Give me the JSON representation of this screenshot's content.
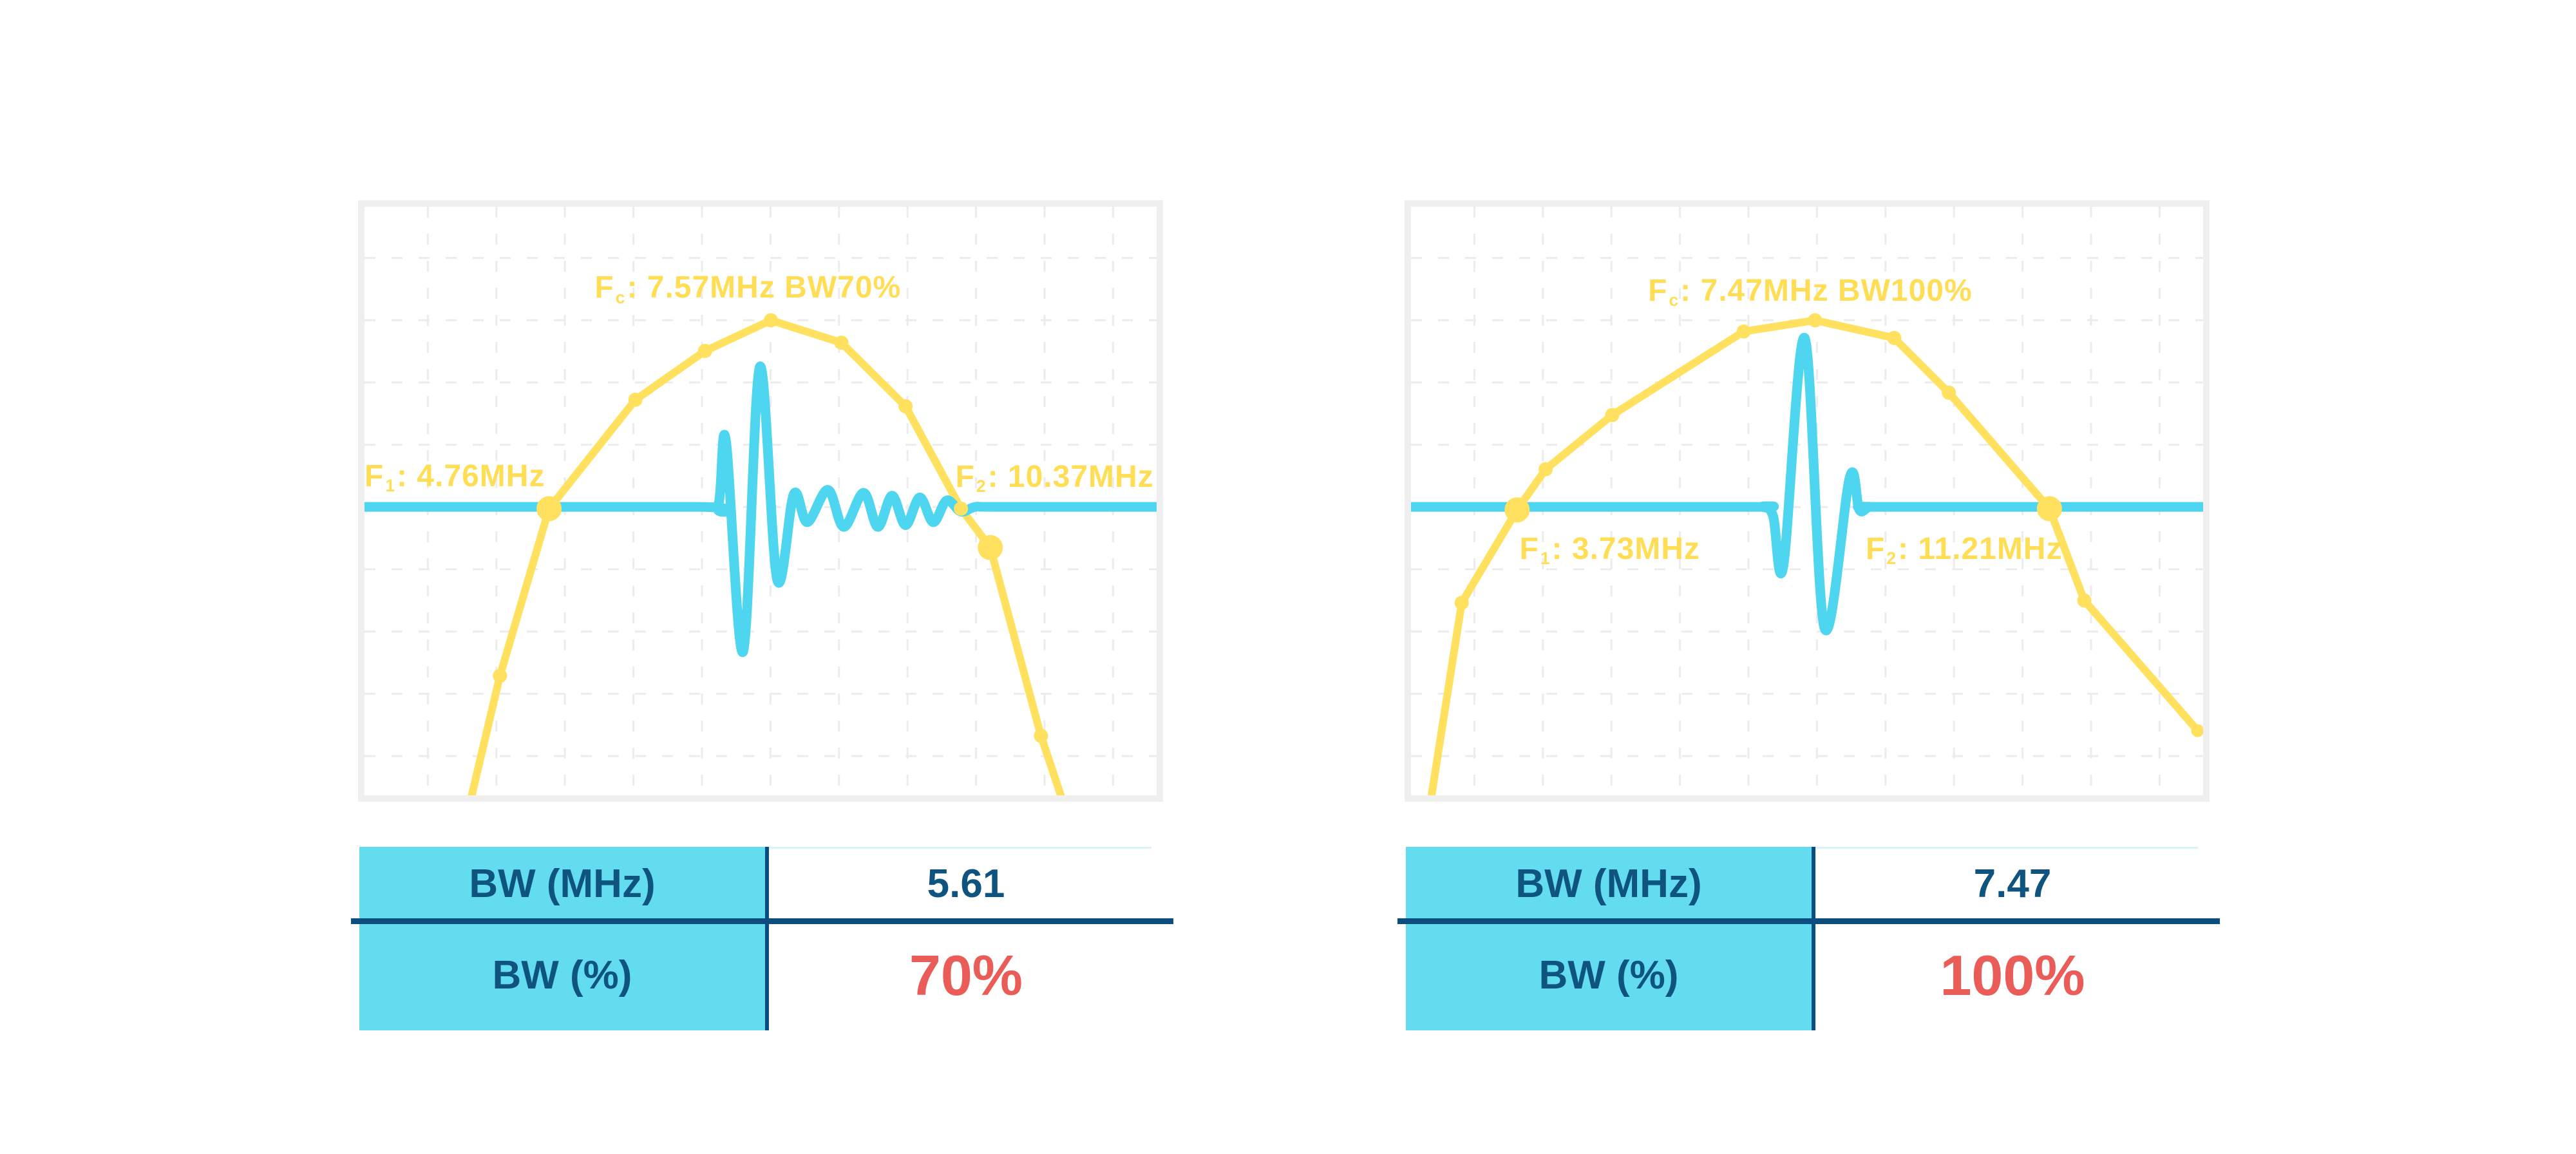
{
  "colors": {
    "yellow": "#FFE15F",
    "label_yellow": "#FFDE56",
    "cyan": "#4ED5EF",
    "table_fill": "#63DCEF",
    "navy": "#0F547E",
    "divider_navy": "#0B4D7E",
    "red": "#EA5C57",
    "frame": "#EFEFEF",
    "grid": "#ECECEC",
    "light_top": "#D9F1F8"
  },
  "panels": [
    {
      "table": {
        "rows": [
          {
            "label": "BW (MHz)",
            "value": "5.61",
            "style": "navy"
          },
          {
            "label": "BW (%)",
            "value": "70%",
            "style": "red"
          }
        ]
      }
    },
    {
      "table": {
        "rows": [
          {
            "label": "BW (MHz)",
            "value": "7.47",
            "style": "navy"
          },
          {
            "label": "BW (%)",
            "value": "100%",
            "style": "red"
          }
        ]
      }
    }
  ],
  "chart_data": [
    {
      "type": "line",
      "description": "Pulse spectrum with 70% bandwidth",
      "center_frequency_mhz": 7.57,
      "f1_mhz": 4.76,
      "f2_mhz": 10.37,
      "bandwidth_mhz": 5.61,
      "bandwidth_pct": 70,
      "grid": {
        "x_pct_start": 8.0,
        "x_pct_step": 8.65,
        "x_count": 11,
        "y_pct_start": 8.7,
        "y_pct_step": 10.58,
        "y_count": 9,
        "dash": "17 25",
        "width": 3
      },
      "annotations": {
        "fc": {
          "pre": "F",
          "sub": "c",
          "post": ": 7.57MHz BW70%",
          "x_pct": 48.4,
          "y_pct": 13.8,
          "anchor": "center"
        },
        "f1": {
          "pre": "F",
          "sub": "1",
          "post": ": 4.76MHz",
          "x_pct": 22.8,
          "y_pct": 45.8,
          "anchor": "right"
        },
        "f2": {
          "pre": "F",
          "sub": "2",
          "post": ": 10.37MHz",
          "x_pct": 74.6,
          "y_pct": 45.9,
          "anchor": "left"
        }
      },
      "series": [
        {
          "name": "spectrum",
          "style": "linear",
          "color": "#FFE15F",
          "stroke_width": 12,
          "points": [
            [
              13.4,
              100.8
            ],
            [
              17.1,
              79.7
            ],
            [
              23.3,
              51.3
            ],
            [
              34.2,
              32.8
            ],
            [
              43.0,
              24.5
            ],
            [
              51.3,
              19.3
            ],
            [
              60.2,
              23.1
            ],
            [
              68.3,
              33.9
            ],
            [
              75.3,
              51.3
            ],
            [
              79.0,
              57.9
            ],
            [
              85.4,
              89.9
            ],
            [
              88.1,
              100.8
            ]
          ],
          "markers": [
            [
              1,
              11
            ],
            [
              2,
              19.5
            ],
            [
              3,
              11
            ],
            [
              4,
              11
            ],
            [
              5,
              11
            ],
            [
              6,
              11
            ],
            [
              7,
              11
            ],
            [
              8,
              11
            ],
            [
              9,
              19.5
            ],
            [
              10,
              11
            ]
          ]
        },
        {
          "name": "pulse",
          "style": "smooth",
          "color": "#4ED5EF",
          "stroke_width": 15,
          "points": [
            [
              0,
              51.0
            ],
            [
              42.0,
              51.0
            ],
            [
              44.6,
              51.0
            ],
            [
              45.6,
              39.5
            ],
            [
              47.8,
              75.6
            ],
            [
              49.9,
              27.2
            ],
            [
              52.1,
              63.4
            ],
            [
              54.2,
              48.8
            ],
            [
              55.9,
              53.6
            ],
            [
              58.5,
              48.1
            ],
            [
              60.5,
              54.4
            ],
            [
              63.0,
              48.6
            ],
            [
              64.8,
              54.4
            ],
            [
              66.6,
              49.1
            ],
            [
              68.3,
              54.1
            ],
            [
              70.1,
              49.4
            ],
            [
              71.8,
              53.6
            ],
            [
              73.5,
              49.9
            ],
            [
              75.3,
              51.8
            ],
            [
              77.1,
              51.0
            ],
            [
              80.0,
              51.0
            ],
            [
              100,
              51.0
            ]
          ],
          "markers": []
        }
      ]
    },
    {
      "type": "line",
      "description": "Pulse spectrum with 100% bandwidth",
      "center_frequency_mhz": 7.47,
      "f1_mhz": 3.73,
      "f2_mhz": 11.21,
      "bandwidth_mhz": 7.47,
      "bandwidth_pct": 100,
      "grid": {
        "x_pct_start": 8.0,
        "x_pct_step": 8.65,
        "x_count": 11,
        "y_pct_start": 8.7,
        "y_pct_step": 10.58,
        "y_count": 9,
        "dash": "17 25",
        "width": 3
      },
      "annotations": {
        "fc": {
          "pre": "F",
          "sub": "c",
          "post": ": 7.47MHz BW100%",
          "x_pct": 50.4,
          "y_pct": 14.3,
          "anchor": "center"
        },
        "f1": {
          "pre": "F",
          "sub": "1",
          "post": ": 3.73MHz",
          "x_pct": 25.1,
          "y_pct": 58.2,
          "anchor": "center"
        },
        "f2": {
          "pre": "F",
          "sub": "2",
          "post": ": 11.21MHz",
          "x_pct": 57.4,
          "y_pct": 58.2,
          "anchor": "left"
        }
      },
      "series": [
        {
          "name": "spectrum",
          "style": "linear",
          "color": "#FFE15F",
          "stroke_width": 12,
          "points": [
            [
              2.5,
              100.8
            ],
            [
              6.4,
              67.3
            ],
            [
              13.4,
              51.5
            ],
            [
              17.0,
              44.6
            ],
            [
              25.4,
              35.4
            ],
            [
              42.0,
              21.2
            ],
            [
              51.0,
              19.3
            ],
            [
              61.0,
              22.3
            ],
            [
              67.9,
              31.6
            ],
            [
              80.6,
              51.3
            ],
            [
              85.0,
              66.9
            ],
            [
              99.3,
              89.0
            ]
          ],
          "markers": [
            [
              1,
              11
            ],
            [
              2,
              19.5
            ],
            [
              3,
              11
            ],
            [
              4,
              11
            ],
            [
              5,
              11
            ],
            [
              6,
              11
            ],
            [
              7,
              11
            ],
            [
              8,
              11
            ],
            [
              9,
              19.5
            ],
            [
              10,
              11
            ],
            [
              11,
              10
            ]
          ]
        },
        {
          "name": "pulse",
          "style": "smooth",
          "color": "#4ED5EF",
          "stroke_width": 15,
          "points": [
            [
              0,
              51.0
            ],
            [
              42.0,
              51.0
            ],
            [
              44.3,
              51.0
            ],
            [
              45.7,
              52.5
            ],
            [
              47.0,
              61.1
            ],
            [
              49.7,
              22.3
            ],
            [
              52.2,
              71.6
            ],
            [
              55.4,
              45.9
            ],
            [
              56.6,
              51.5
            ],
            [
              57.9,
              51.0
            ],
            [
              60.0,
              51.0
            ],
            [
              100,
              51.0
            ]
          ],
          "markers": []
        }
      ]
    }
  ]
}
